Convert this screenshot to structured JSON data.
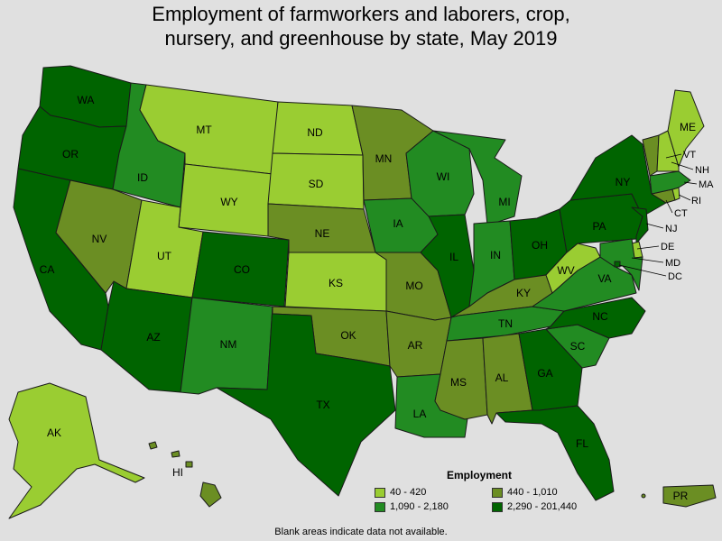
{
  "title_line1": "Employment of farmworkers and laborers, crop,",
  "title_line2": "nursery, and greenhouse by state, May 2019",
  "legend": {
    "title": "Employment",
    "items": [
      {
        "label": "40 - 420",
        "color": "#9acd32"
      },
      {
        "label": "440 - 1,010",
        "color": "#6b8e23"
      },
      {
        "label": "1,090 - 2,180",
        "color": "#228b22"
      },
      {
        "label": "2,290 - 201,440",
        "color": "#006400"
      }
    ]
  },
  "footnote": "Blank areas indicate data not available.",
  "states": {
    "WA": {
      "label": "WA",
      "bin": 3
    },
    "OR": {
      "label": "OR",
      "bin": 3
    },
    "CA": {
      "label": "CA",
      "bin": 3
    },
    "ID": {
      "label": "ID",
      "bin": 2
    },
    "NV": {
      "label": "NV",
      "bin": 1
    },
    "MT": {
      "label": "MT",
      "bin": 0
    },
    "WY": {
      "label": "WY",
      "bin": 0
    },
    "UT": {
      "label": "UT",
      "bin": 0
    },
    "AZ": {
      "label": "AZ",
      "bin": 3
    },
    "CO": {
      "label": "CO",
      "bin": 3
    },
    "NM": {
      "label": "NM",
      "bin": 2
    },
    "ND": {
      "label": "ND",
      "bin": 0
    },
    "SD": {
      "label": "SD",
      "bin": 0
    },
    "NE": {
      "label": "NE",
      "bin": 1
    },
    "KS": {
      "label": "KS",
      "bin": 0
    },
    "OK": {
      "label": "OK",
      "bin": 1
    },
    "TX": {
      "label": "TX",
      "bin": 3
    },
    "MN": {
      "label": "MN",
      "bin": 1
    },
    "IA": {
      "label": "IA",
      "bin": 2
    },
    "MO": {
      "label": "MO",
      "bin": 1
    },
    "AR": {
      "label": "AR",
      "bin": 1
    },
    "LA": {
      "label": "LA",
      "bin": 2
    },
    "WI": {
      "label": "WI",
      "bin": 2
    },
    "IL": {
      "label": "IL",
      "bin": 3
    },
    "MI": {
      "label": "MI",
      "bin": 2
    },
    "IN": {
      "label": "IN",
      "bin": 2
    },
    "OH": {
      "label": "OH",
      "bin": 3
    },
    "KY": {
      "label": "KY",
      "bin": 1
    },
    "TN": {
      "label": "TN",
      "bin": 2
    },
    "MS": {
      "label": "MS",
      "bin": 1
    },
    "AL": {
      "label": "AL",
      "bin": 1
    },
    "GA": {
      "label": "GA",
      "bin": 3
    },
    "FL": {
      "label": "FL",
      "bin": 3
    },
    "SC": {
      "label": "SC",
      "bin": 2
    },
    "NC": {
      "label": "NC",
      "bin": 3
    },
    "VA": {
      "label": "VA",
      "bin": 2
    },
    "WV": {
      "label": "WV",
      "bin": 0
    },
    "PA": {
      "label": "PA",
      "bin": 3
    },
    "NY": {
      "label": "NY",
      "bin": 3
    },
    "ME": {
      "label": "ME",
      "bin": 0
    },
    "VT": {
      "label": "VT",
      "bin": 1
    },
    "NH": {
      "label": "NH",
      "bin": 0
    },
    "MA": {
      "label": "MA",
      "bin": 2
    },
    "RI": {
      "label": "RI",
      "bin": 0
    },
    "CT": {
      "label": "CT",
      "bin": 1
    },
    "NJ": {
      "label": "NJ",
      "bin": 3
    },
    "DE": {
      "label": "DE",
      "bin": 0
    },
    "MD": {
      "label": "MD",
      "bin": 2
    },
    "DC": {
      "label": "DC",
      "bin": 3
    },
    "AK": {
      "label": "AK",
      "bin": 0
    },
    "HI": {
      "label": "HI",
      "bin": 1
    },
    "PR": {
      "label": "PR",
      "bin": 1
    }
  }
}
